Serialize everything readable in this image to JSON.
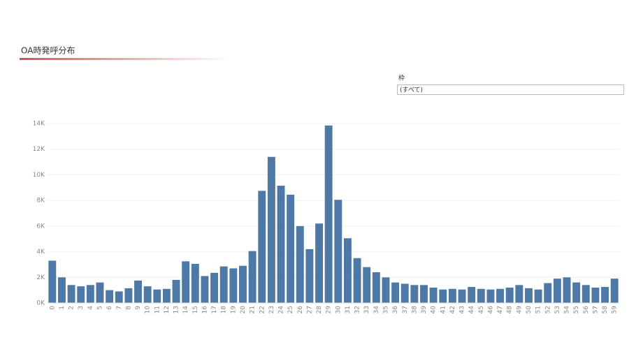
{
  "chart_data": {
    "type": "bar",
    "title": "OA時発呼分布",
    "categories": [
      "0",
      "1",
      "2",
      "3",
      "4",
      "5",
      "6",
      "7",
      "8",
      "9",
      "10",
      "11",
      "12",
      "13",
      "14",
      "15",
      "16",
      "17",
      "18",
      "19",
      "20",
      "21",
      "22",
      "23",
      "24",
      "25",
      "26",
      "27",
      "28",
      "29",
      "30",
      "31",
      "32",
      "33",
      "34",
      "35",
      "36",
      "37",
      "38",
      "39",
      "40",
      "41",
      "42",
      "43",
      "44",
      "45",
      "46",
      "47",
      "48",
      "49",
      "50",
      "51",
      "52",
      "53",
      "54",
      "55",
      "56",
      "57",
      "58",
      "59"
    ],
    "values": [
      3300,
      2000,
      1400,
      1300,
      1400,
      1600,
      1000,
      900,
      1150,
      1750,
      1300,
      1050,
      1100,
      1800,
      3250,
      3050,
      2100,
      2350,
      2850,
      2700,
      2900,
      4050,
      8750,
      11400,
      9150,
      8450,
      6000,
      4200,
      6200,
      13850,
      8050,
      5050,
      3500,
      2800,
      2400,
      2000,
      1600,
      1500,
      1400,
      1400,
      1200,
      1050,
      1100,
      1050,
      1250,
      1100,
      1050,
      1100,
      1200,
      1400,
      1150,
      1050,
      1550,
      1900,
      2000,
      1600,
      1400,
      1200,
      1250,
      1900
    ],
    "color": "#4e79a7",
    "ylim": [
      0,
      14000
    ],
    "yticks": [
      {
        "value": 0,
        "label": "0K"
      },
      {
        "value": 2000,
        "label": "2K"
      },
      {
        "value": 4000,
        "label": "4K"
      },
      {
        "value": 6000,
        "label": "6K"
      },
      {
        "value": 8000,
        "label": "8K"
      },
      {
        "value": 10000,
        "label": "10K"
      },
      {
        "value": 12000,
        "label": "12K"
      },
      {
        "value": 14000,
        "label": "14K"
      }
    ],
    "grid": true
  },
  "filter": {
    "label": "枠",
    "value": "(すべて)"
  }
}
